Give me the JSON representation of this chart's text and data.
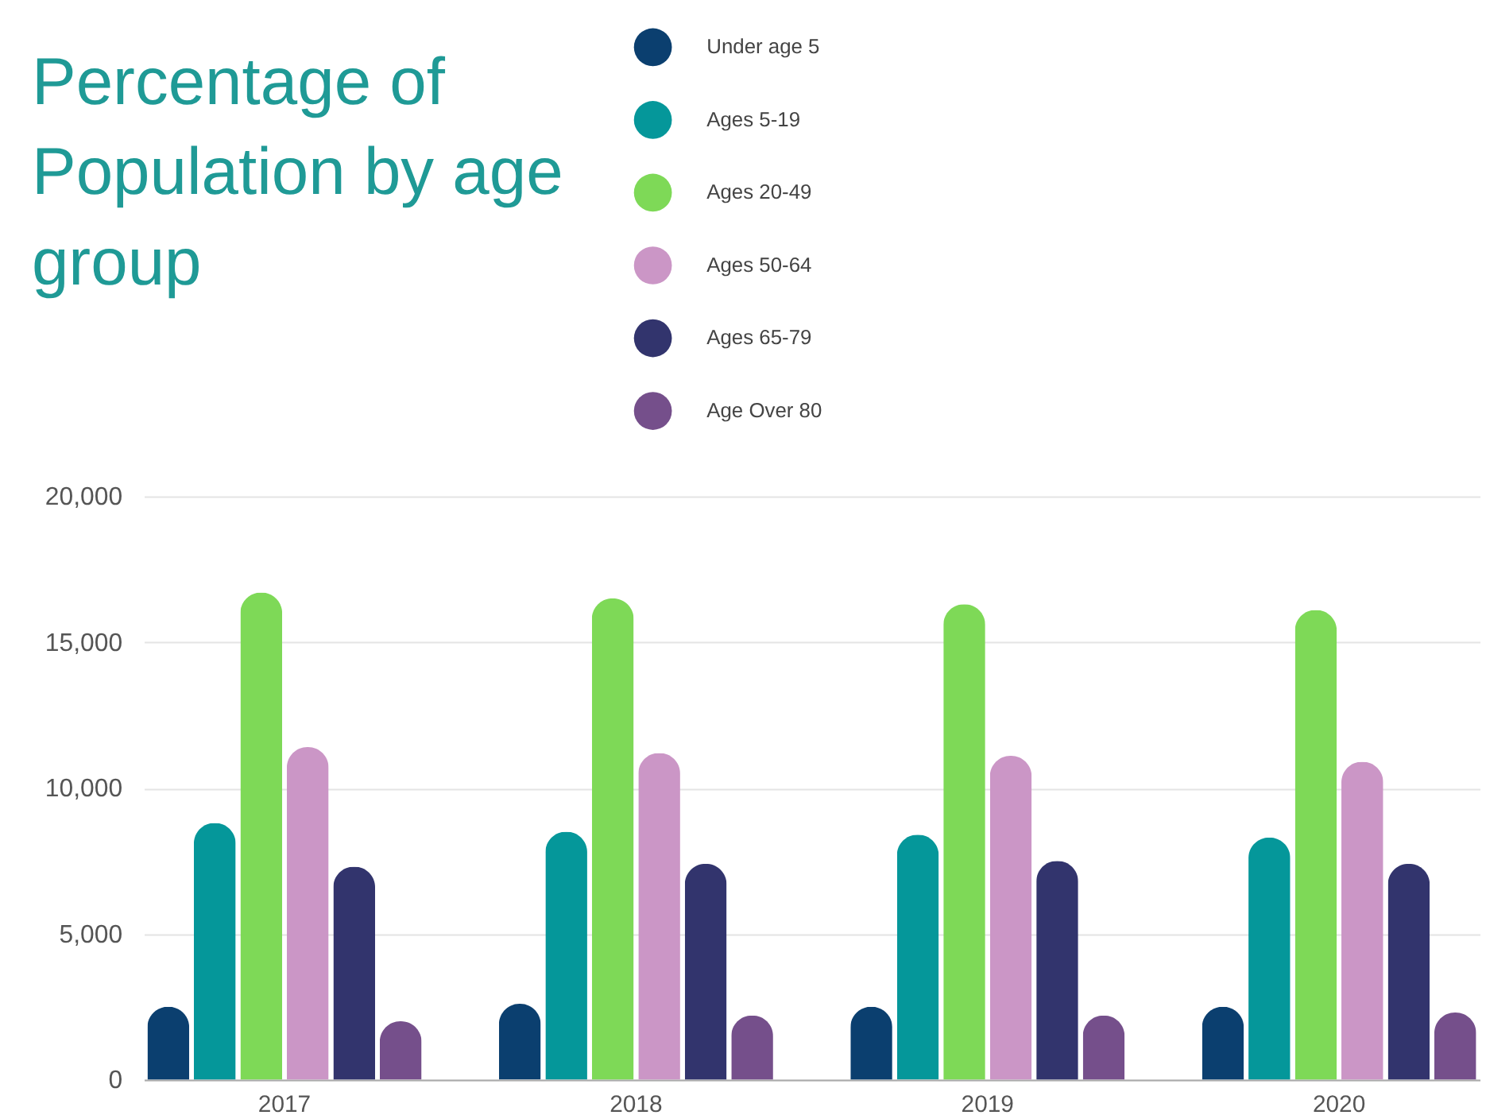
{
  "chart_data": {
    "type": "bar",
    "title": "Percentage of Population by age group",
    "categories": [
      "2017",
      "2018",
      "2019",
      "2020"
    ],
    "series": [
      {
        "name": "Under age 5",
        "color": "#0b3f6f",
        "values": [
          2500,
          2600,
          2500,
          2500
        ]
      },
      {
        "name": "Ages 5-19",
        "color": "#05979a",
        "values": [
          8800,
          8500,
          8400,
          8300
        ]
      },
      {
        "name": "Ages 20-49",
        "color": "#7ed957",
        "values": [
          16700,
          16500,
          16300,
          16100
        ]
      },
      {
        "name": "Ages 50-64",
        "color": "#cb96c6",
        "values": [
          11400,
          11200,
          11100,
          10900
        ]
      },
      {
        "name": "Ages 65-79",
        "color": "#32346d",
        "values": [
          7300,
          7400,
          7500,
          7400
        ]
      },
      {
        "name": "Age Over 80",
        "color": "#754f8b",
        "values": [
          2000,
          2200,
          2200,
          2300
        ]
      }
    ],
    "ylim": [
      0,
      20000
    ],
    "yticks": [
      {
        "value": 0,
        "label": "0"
      },
      {
        "value": 5000,
        "label": "5,000"
      },
      {
        "value": 10000,
        "label": "10,000"
      },
      {
        "value": 15000,
        "label": "15,000"
      },
      {
        "value": 20000,
        "label": "20,000"
      }
    ],
    "grid": "y",
    "legend": "top"
  }
}
